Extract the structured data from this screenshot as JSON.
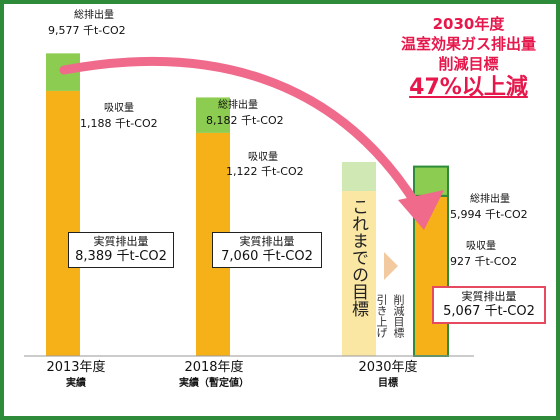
{
  "headline": {
    "line1": "2030年度",
    "line2": "温室効果ガス排出量",
    "line3": "削減目標",
    "line4": "47%以上減"
  },
  "bar_labels": {
    "total": "総排出量",
    "absorption": "吸収量",
    "net": "実質排出量"
  },
  "values_text": {
    "y2013_total": "9,577 千t-CO2",
    "y2013_absorb": "1,188 千t-CO2",
    "y2013_net": "8,389 千t-CO2",
    "y2018_total": "8,182 千t-CO2",
    "y2018_absorb": "1,122 千t-CO2",
    "y2018_net": "7,060 千t-CO2",
    "y2030_total": "5,994 千t-CO2",
    "y2030_absorb": "927 千t-CO2",
    "y2030_net": "5,067 千t-CO2"
  },
  "years": {
    "y2013": "2013年度",
    "y2013_sub": "実績",
    "y2018": "2018年度",
    "y2018_sub": "実績（暫定値）",
    "y2030": "2030年度",
    "y2030_sub": "目標"
  },
  "previous_target_label": "これまでの目標",
  "raise_label_1": "削減目標",
  "raise_label_2": "引き上げ",
  "colors": {
    "net": "#f5b117",
    "absorption": "#8ccc50",
    "previous_net": "#fbe7a4",
    "previous_absorption": "#cfe8b4",
    "arrow": "#f06a8c",
    "headline": "#e6174b",
    "frame": "#2e8b3a"
  },
  "chart_data": {
    "type": "bar",
    "stacked": true,
    "units": "千t-CO2",
    "categories": [
      "2013年度",
      "2018年度",
      "",
      "2030年度"
    ],
    "series": [
      {
        "name": "実質排出量",
        "values": [
          8389,
          7060,
          null,
          5067
        ]
      },
      {
        "name": "吸収量",
        "values": [
          1188,
          1122,
          null,
          927
        ]
      }
    ],
    "totals": [
      9577,
      8182,
      null,
      5994
    ],
    "reduction_target_percent": 47
  }
}
